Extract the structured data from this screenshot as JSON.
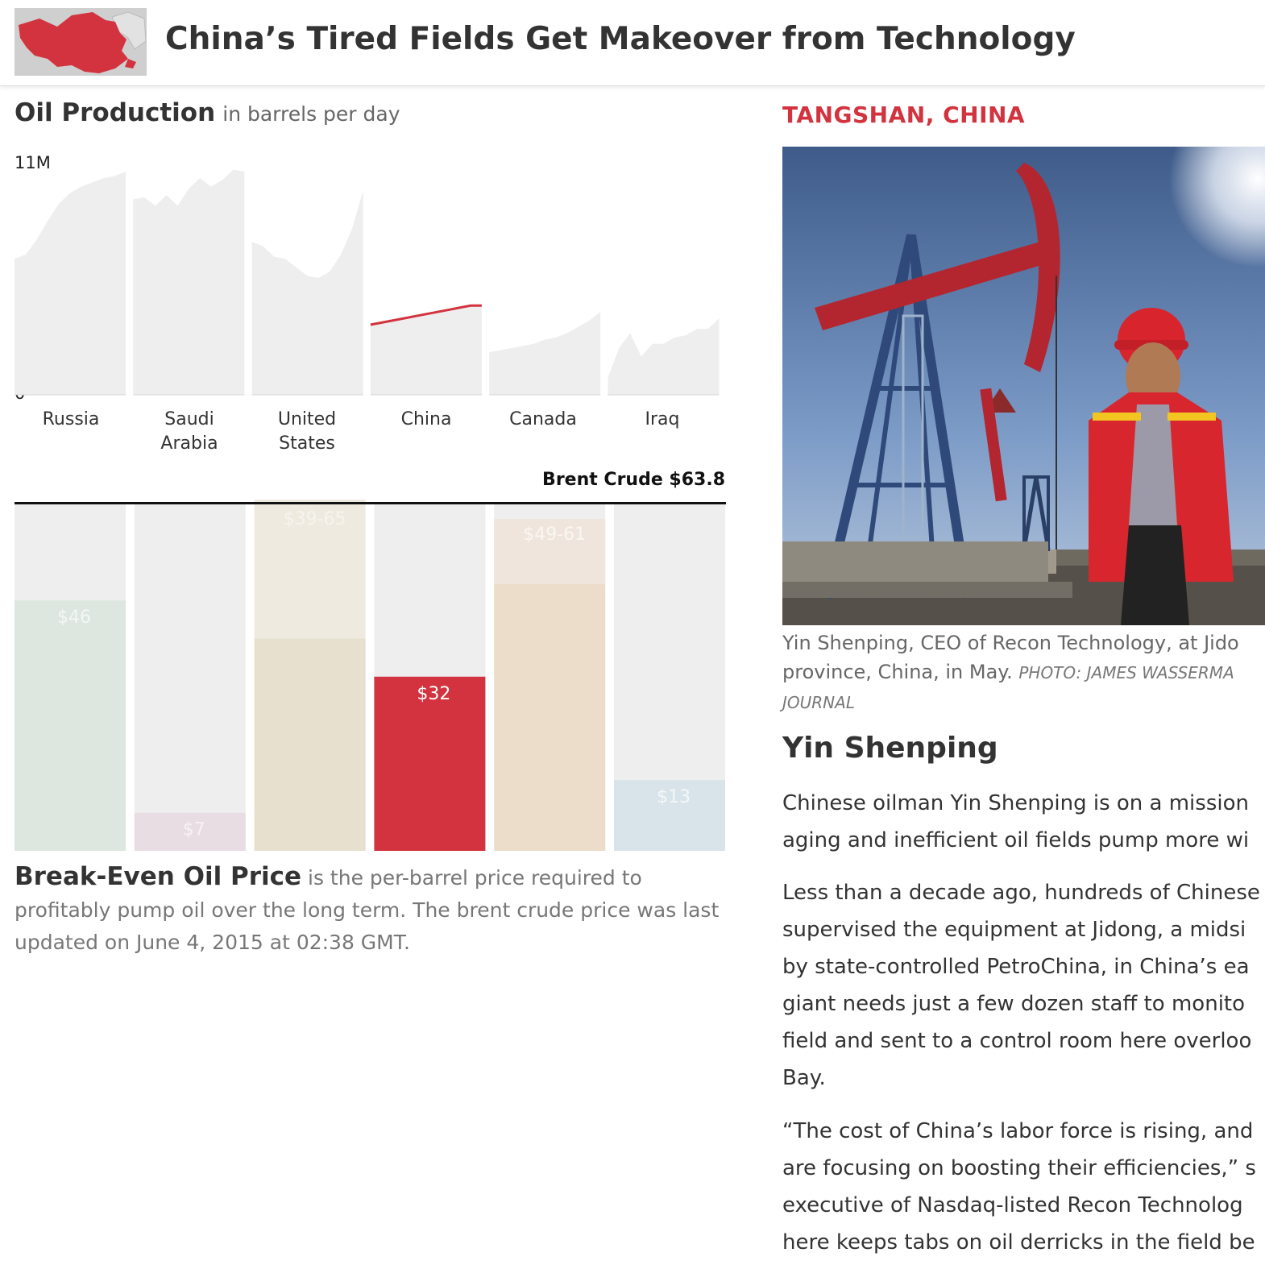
{
  "header": {
    "title": "China’s Tired Fields Get Makeover from Technology",
    "thumbnail_icon": "china-map-icon",
    "highlight_color": "#d2333e"
  },
  "production": {
    "title": "Oil Production",
    "subtitle": "in barrels per day",
    "y_max_label": "11M",
    "y_min_label": "0"
  },
  "countries": [
    {
      "label_line1": "Russia",
      "label_line2": ""
    },
    {
      "label_line1": "Saudi",
      "label_line2": "Arabia"
    },
    {
      "label_line1": "United",
      "label_line2": "States"
    },
    {
      "label_line1": "China",
      "label_line2": ""
    },
    {
      "label_line1": "Canada",
      "label_line2": ""
    },
    {
      "label_line1": "Iraq",
      "label_line2": ""
    }
  ],
  "breakeven": {
    "brent_label": "Brent Crude $63.8",
    "title": "Break-Even Oil Price",
    "description": "is the per-barrel price required to profitably pump oil over the long term. The brent crude price was last updated on June 4, 2015 at 02:38 GMT."
  },
  "chart_data": [
    {
      "type": "area",
      "title": "Oil Production",
      "subtitle": "in barrels per day",
      "ylim": [
        0,
        11000000
      ],
      "highlight": "China",
      "highlight_color": "#d2333e",
      "series": [
        {
          "name": "Russia",
          "values": [
            6.4,
            6.6,
            7.3,
            8.2,
            9.0,
            9.5,
            9.8,
            10.0,
            10.2,
            10.3,
            10.5
          ]
        },
        {
          "name": "Saudi Arabia",
          "values": [
            9.2,
            9.3,
            8.9,
            9.4,
            8.9,
            9.7,
            10.2,
            9.8,
            10.1,
            10.6,
            10.5
          ]
        },
        {
          "name": "United States",
          "values": [
            7.2,
            7.0,
            6.5,
            6.4,
            6.0,
            5.6,
            5.5,
            5.8,
            6.6,
            7.8,
            9.6
          ]
        },
        {
          "name": "China",
          "values": [
            3.3,
            3.4,
            3.5,
            3.6,
            3.7,
            3.8,
            3.9,
            4.0,
            4.1,
            4.2,
            4.2
          ]
        },
        {
          "name": "Canada",
          "values": [
            2.0,
            2.1,
            2.2,
            2.3,
            2.4,
            2.6,
            2.7,
            2.9,
            3.2,
            3.5,
            3.9
          ]
        },
        {
          "name": "Iraq",
          "values": [
            0.8,
            2.2,
            2.9,
            1.8,
            2.4,
            2.4,
            2.7,
            2.8,
            3.1,
            3.1,
            3.6
          ]
        }
      ]
    },
    {
      "type": "bar",
      "title": "Break-Even Oil Price",
      "categories": [
        "Russia",
        "Saudi Arabia",
        "United States",
        "China",
        "Canada",
        "Iraq"
      ],
      "ylim": [
        0,
        63.8
      ],
      "reference": {
        "label": "Brent Crude",
        "value": 63.8
      },
      "bars": [
        {
          "label": "$46",
          "low": 46,
          "high": 46,
          "color": "#dde7df",
          "label_color": "#f4f7f4"
        },
        {
          "label": "$7",
          "low": 7,
          "high": 7,
          "color": "#e9dde4",
          "label_color": "#f7f1f4"
        },
        {
          "label": "$39-65",
          "low": 39,
          "high": 65,
          "color": "#e7e0cf",
          "range_color": "#eeeae0",
          "label_color": "#f7f4ee"
        },
        {
          "label": "$32",
          "low": 32,
          "high": 32,
          "color": "#d2333e",
          "label_color": "#ffffff"
        },
        {
          "label": "$49-61",
          "low": 49,
          "high": 61,
          "color": "#ebddc9",
          "range_color": "#efe5dc",
          "label_color": "#faf6f2"
        },
        {
          "label": "$13",
          "low": 13,
          "high": 13,
          "color": "#d9e4ea",
          "label_color": "#f4f7f9"
        }
      ]
    }
  ],
  "article": {
    "dateline": "TANGSHAN, CHINA",
    "photo_label": "oil-pumpjack-photo",
    "caption_line1": "Yin Shenping, CEO of Recon Technology, at Jido",
    "caption_line2": "province, China, in May.",
    "caption_credit_1": "PHOTO: JAMES WASSERMA",
    "caption_credit_2": "JOURNAL",
    "subhead": "Yin Shenping",
    "paragraphs": [
      [
        "Chinese oilman Yin Shenping is on a mission",
        "aging and inefficient oil fields pump more wi"
      ],
      [
        "Less than a decade ago, hundreds of Chinese",
        "supervised the equipment at Jidong, a midsi",
        "by state-controlled PetroChina, in China’s ea",
        "giant needs just a few dozen staff to monito",
        "field and sent to a control room here overloo",
        "Bay."
      ],
      [
        "“The cost of China’s labor force is rising, and",
        "are focusing on boosting their efficiencies,” s",
        "executive of Nasdaq-listed Recon Technolog",
        "here keeps tabs on oil derricks in the field be"
      ]
    ]
  }
}
